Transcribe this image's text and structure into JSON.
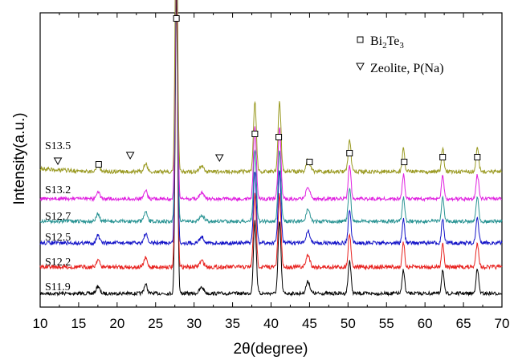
{
  "chart_data": {
    "type": "line",
    "xlabel": "2θ(degree)",
    "ylabel": "Intensity(a.u.)",
    "xlim": [
      10,
      70
    ],
    "x_ticks": [
      10,
      15,
      20,
      25,
      30,
      35,
      40,
      45,
      50,
      55,
      60,
      65,
      70
    ],
    "grid": false,
    "legend": {
      "position": "top-right",
      "entries": [
        {
          "marker": "square",
          "text_parts": [
            "Bi",
            "2",
            "Te",
            "3"
          ]
        },
        {
          "marker": "triangle-down",
          "text": "Zeolite, P(Na)"
        }
      ]
    },
    "peaks": [
      {
        "x": 27.7,
        "h": 1.0,
        "w": 0.22
      },
      {
        "x": 37.9,
        "h": 0.24,
        "w": 0.26
      },
      {
        "x": 41.1,
        "h": 0.24,
        "w": 0.26
      },
      {
        "x": 50.2,
        "h": 0.11,
        "w": 0.25
      },
      {
        "x": 57.2,
        "h": 0.08,
        "w": 0.22
      },
      {
        "x": 62.3,
        "h": 0.08,
        "w": 0.22
      },
      {
        "x": 66.8,
        "h": 0.08,
        "w": 0.25
      },
      {
        "x": 44.8,
        "h": 0.04,
        "w": 0.35
      },
      {
        "x": 23.7,
        "h": 0.03,
        "w": 0.3
      },
      {
        "x": 17.5,
        "h": 0.025,
        "w": 0.3
      },
      {
        "x": 31.0,
        "h": 0.02,
        "w": 0.4
      }
    ],
    "series": [
      {
        "name": "S11.9",
        "color": "#000000"
      },
      {
        "name": "S12.2",
        "color": "#e8221f"
      },
      {
        "name": "S12.5",
        "color": "#1515c8"
      },
      {
        "name": "S12.7",
        "color": "#2a9494"
      },
      {
        "name": "S13.2",
        "color": "#e020e0"
      },
      {
        "name": "S13.5",
        "color": "#9a9a22"
      }
    ],
    "markers": {
      "bi2te3_x": [
        27.7,
        17.6,
        37.9,
        41.0,
        45.0,
        50.2,
        57.3,
        62.3,
        66.8
      ],
      "zeolite_x": [
        12.3,
        21.7,
        33.3
      ]
    }
  }
}
